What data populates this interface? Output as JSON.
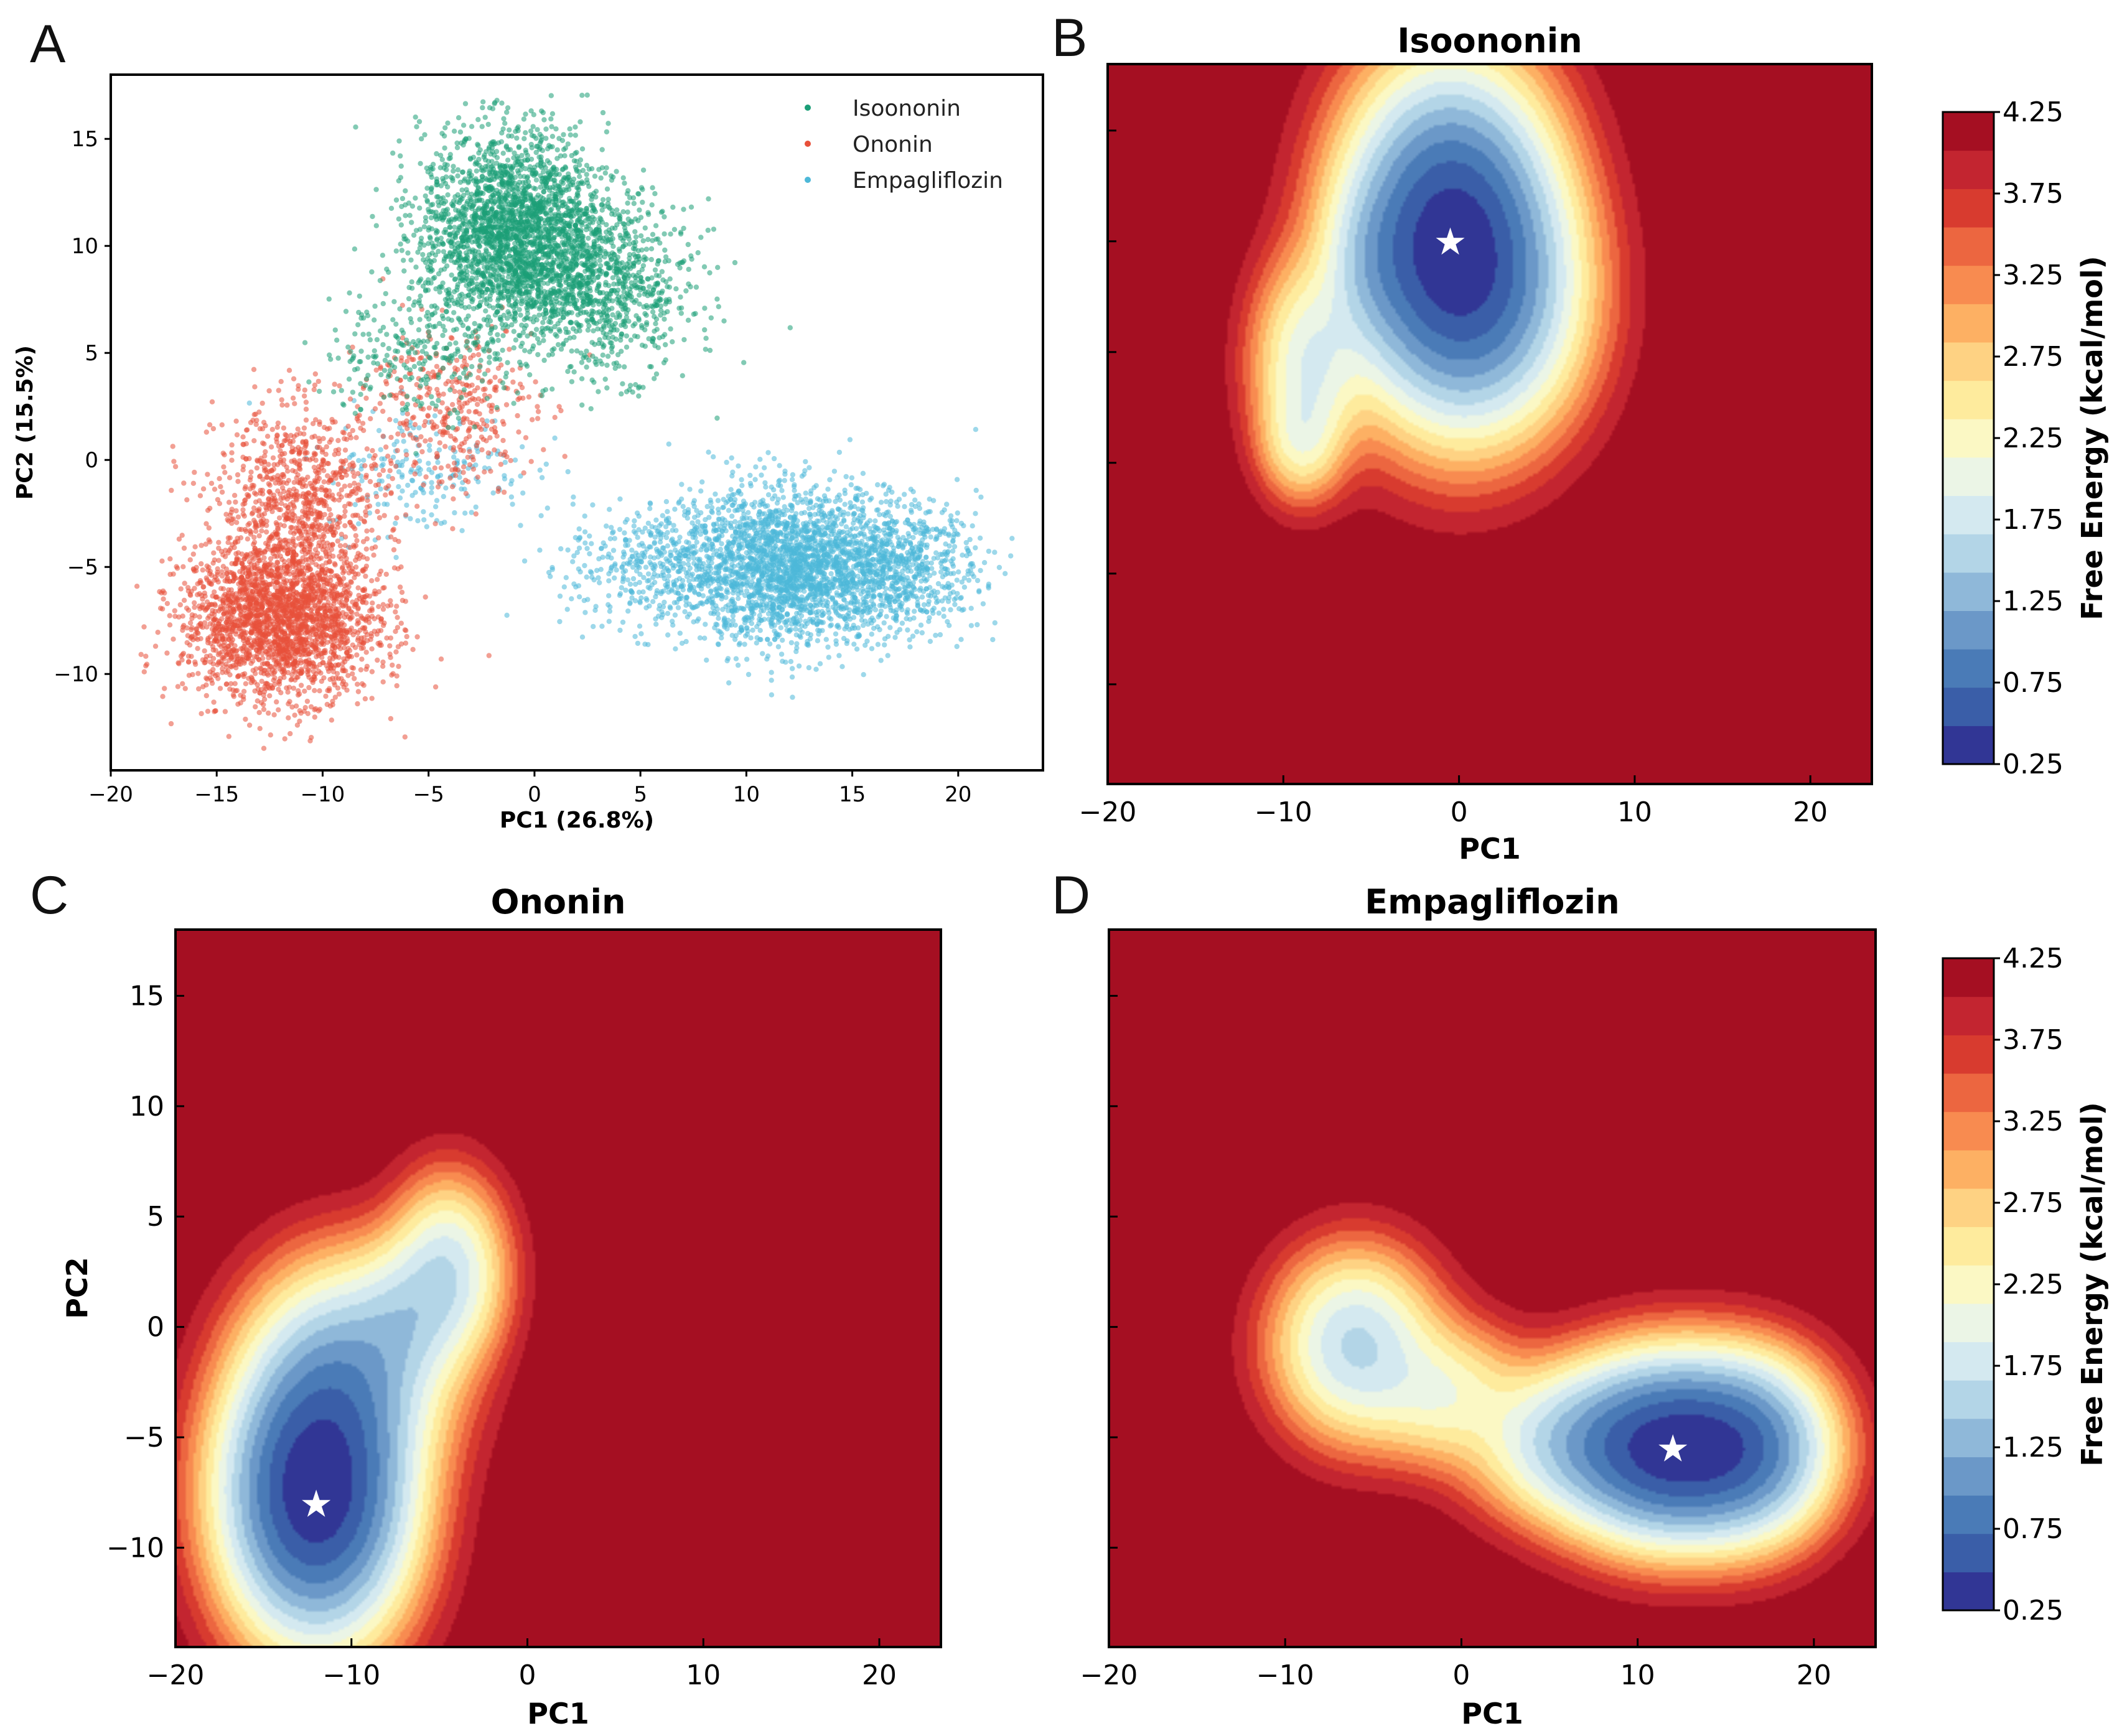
{
  "chart_data": [
    {
      "panel": "A",
      "type": "scatter",
      "title": "",
      "xlabel": "PC1 (26.8%)",
      "ylabel": "PC2 (15.5%)",
      "xlim": [
        -20,
        24
      ],
      "ylim": [
        -14.5,
        18
      ],
      "xticks": [
        -20,
        -15,
        -10,
        -5,
        0,
        5,
        10,
        15,
        20
      ],
      "yticks": [
        -10,
        -5,
        0,
        5,
        10,
        15
      ],
      "legend_position": "top-right",
      "series": [
        {
          "name": "Isoononin",
          "color": "#1b9e77",
          "clusters": [
            {
              "cx": -1,
              "cy": 10.5,
              "sx": 2.2,
              "sy": 2.4,
              "n": 2600
            },
            {
              "cx": 3.5,
              "cy": 8,
              "sx": 2,
              "sy": 2,
              "n": 800
            },
            {
              "cx": -6,
              "cy": 5,
              "sx": 2,
              "sy": 1.6,
              "n": 220
            }
          ]
        },
        {
          "name": "Ononin",
          "color": "#e8503a",
          "clusters": [
            {
              "cx": -12,
              "cy": -7.5,
              "sx": 2.3,
              "sy": 1.8,
              "n": 2400
            },
            {
              "cx": -11,
              "cy": -2,
              "sx": 2,
              "sy": 2.2,
              "n": 900
            },
            {
              "cx": -4,
              "cy": 2.5,
              "sx": 2,
              "sy": 2,
              "n": 380
            }
          ]
        },
        {
          "name": "Empagliflozin",
          "color": "#4db8d8",
          "clusters": [
            {
              "cx": 12,
              "cy": -5,
              "sx": 2.4,
              "sy": 1.8,
              "n": 2200
            },
            {
              "cx": 17,
              "cy": -5,
              "sx": 2,
              "sy": 1.5,
              "n": 800
            },
            {
              "cx": 6,
              "cy": -5,
              "sx": 2.2,
              "sy": 1.5,
              "n": 500
            },
            {
              "cx": -5,
              "cy": -0.5,
              "sx": 2.5,
              "sy": 1.5,
              "n": 200
            }
          ]
        }
      ]
    },
    {
      "panel": "B",
      "type": "contour",
      "title": "Isoononin",
      "xlabel": "PC1",
      "ylabel": "",
      "xlim": [
        -20,
        23.5
      ],
      "ylim": [
        -14.5,
        18
      ],
      "xticks": [
        -20,
        -10,
        0,
        10,
        20
      ],
      "minimum": [
        -0.5,
        10
      ],
      "wells": [
        {
          "cx": -0.5,
          "cy": 10,
          "sx": 3.2,
          "sy": 4.0,
          "depth": 3.9
        },
        {
          "cx": 2,
          "cy": 7,
          "sx": 3.0,
          "sy": 3.2,
          "depth": 2.4
        },
        {
          "cx": -8.5,
          "cy": 4.5,
          "sx": 1.8,
          "sy": 2.6,
          "depth": 2.2
        },
        {
          "cx": -9,
          "cy": 1,
          "sx": 1.3,
          "sy": 1.5,
          "depth": 1.6
        },
        {
          "cx": -5,
          "cy": 9,
          "sx": 1.5,
          "sy": 2.2,
          "depth": 1.6
        }
      ]
    },
    {
      "panel": "C",
      "type": "contour",
      "title": "Ononin",
      "xlabel": "PC1",
      "ylabel": "PC2",
      "xlim": [
        -20,
        23.5
      ],
      "ylim": [
        -14.5,
        18
      ],
      "xticks": [
        -20,
        -10,
        0,
        10,
        20
      ],
      "yticks": [
        -10,
        -5,
        0,
        5,
        10,
        15
      ],
      "minimum": [
        -12,
        -8
      ],
      "wells": [
        {
          "cx": -12,
          "cy": -7.5,
          "sx": 2.8,
          "sy": 3.5,
          "depth": 3.95
        },
        {
          "cx": -10,
          "cy": -2,
          "sx": 3.0,
          "sy": 2.8,
          "depth": 2.7
        },
        {
          "cx": -4.5,
          "cy": 2.5,
          "sx": 1.8,
          "sy": 2.3,
          "depth": 2.4
        },
        {
          "cx": -7,
          "cy": 0.5,
          "sx": 1.8,
          "sy": 2.0,
          "depth": 1.9
        }
      ]
    },
    {
      "panel": "D",
      "type": "contour",
      "title": "Empagliflozin",
      "xlabel": "PC1",
      "ylabel": "",
      "xlim": [
        -20,
        23.5
      ],
      "ylim": [
        -14.5,
        18
      ],
      "xticks": [
        -20,
        -10,
        0,
        10,
        20
      ],
      "minimum": [
        12,
        -5.5
      ],
      "wells": [
        {
          "cx": 12,
          "cy": -5.5,
          "sx": 3.4,
          "sy": 2.2,
          "depth": 3.95
        },
        {
          "cx": 16.5,
          "cy": -5.5,
          "sx": 2.5,
          "sy": 2.2,
          "depth": 3.0
        },
        {
          "cx": 6,
          "cy": -5.2,
          "sx": 3.0,
          "sy": 1.9,
          "depth": 2.4
        },
        {
          "cx": -6,
          "cy": -0.8,
          "sx": 2.5,
          "sy": 2.3,
          "depth": 2.6
        },
        {
          "cx": -1,
          "cy": -3,
          "sx": 2.5,
          "sy": 1.8,
          "depth": 1.9
        }
      ]
    }
  ],
  "panels": {
    "A": {
      "letter": "A"
    },
    "B": {
      "letter": "B"
    },
    "C": {
      "letter": "C"
    },
    "D": {
      "letter": "D"
    }
  },
  "legend": [
    "Isoononin",
    "Ononin",
    "Empagliflozin"
  ],
  "colorbar": {
    "label": "Free Energy (kcal/mol)",
    "ticks": [
      "4.25",
      "3.75",
      "3.25",
      "2.75",
      "2.25",
      "1.75",
      "1.25",
      "0.75",
      "0.25"
    ],
    "levels": [
      0.25,
      4.25
    ],
    "colors": [
      "#313695",
      "#3a5ea8",
      "#4a7bb7",
      "#6b98c8",
      "#8fb8d9",
      "#b3d5e7",
      "#d4e9f0",
      "#ebf5e6",
      "#fbf8c4",
      "#feeb9d",
      "#fed283",
      "#fdb063",
      "#f88b50",
      "#ec6640",
      "#d83b2f",
      "#c32530",
      "#a50f22"
    ]
  }
}
